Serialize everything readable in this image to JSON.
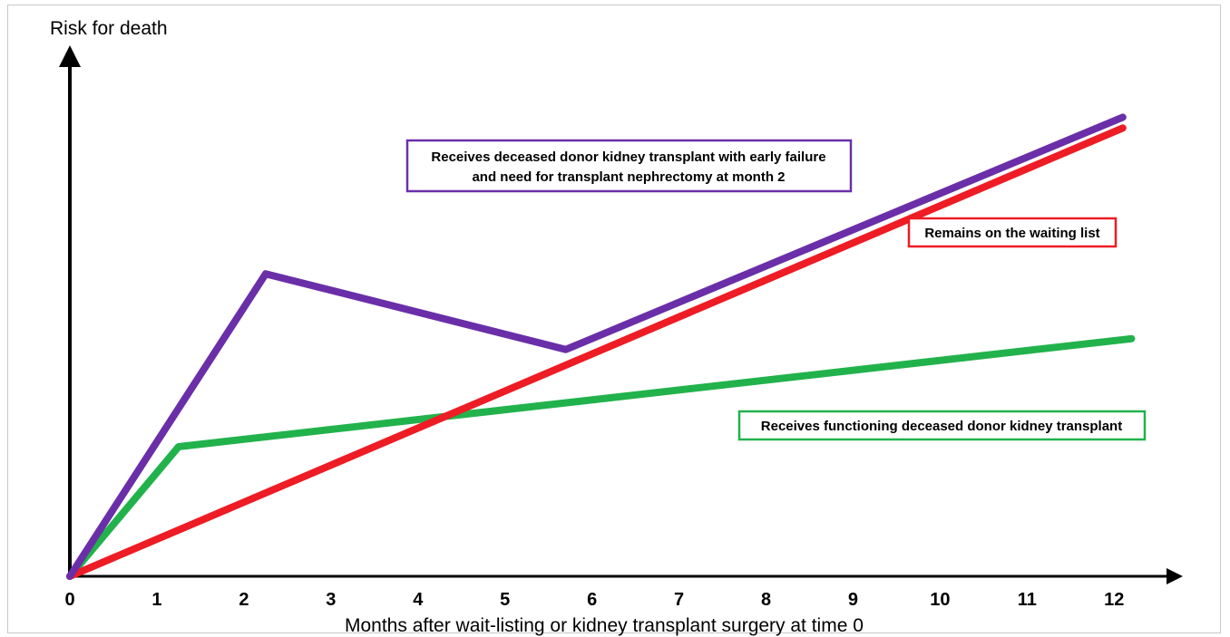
{
  "chart_data": {
    "type": "line",
    "ylabel": "Risk for death",
    "xlabel": "Months after wait-listing or kidney transplant surgery at time 0",
    "x_ticks": [
      "0",
      "1",
      "2",
      "3",
      "4",
      "5",
      "6",
      "7",
      "8",
      "9",
      "10",
      "11",
      "12"
    ],
    "xlim": [
      0,
      12.8
    ],
    "ylim": [
      0,
      100
    ],
    "y_ticks_shown": false,
    "grid": false,
    "series": [
      {
        "name": "Receives deceased donor kidney transplant with early failure and need for transplant nephrectomy at month 2",
        "name_lines": [
          "Receives deceased donor kidney transplant with early failure",
          "and need for transplant nephrectomy at month 2"
        ],
        "color": "#6a2fa8",
        "x": [
          0,
          2.25,
          5.7,
          12.1
        ],
        "y": [
          0,
          56,
          42,
          85
        ]
      },
      {
        "name": "Remains on the waiting list",
        "name_lines": [
          "Remains on the waiting list"
        ],
        "color": "#ee1c24",
        "x": [
          0,
          12.1
        ],
        "y": [
          0,
          83
        ]
      },
      {
        "name": "Receives functioning deceased donor kidney transplant",
        "name_lines": [
          "Receives functioning deceased donor kidney transplant"
        ],
        "color": "#22b24c",
        "x": [
          0,
          1.25,
          12.2
        ],
        "y": [
          0,
          24,
          44
        ]
      }
    ]
  }
}
